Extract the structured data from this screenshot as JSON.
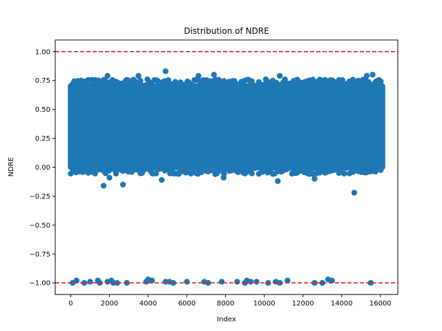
{
  "chart_data": {
    "type": "scatter",
    "title": "Distribution of NDRE",
    "xlabel": "Index",
    "ylabel": "NDRE",
    "xlim": [
      -800,
      16900
    ],
    "ylim": [
      -1.1,
      1.1
    ],
    "x_ticks": [
      0,
      2000,
      4000,
      6000,
      8000,
      10000,
      12000,
      14000,
      16000
    ],
    "x_tick_labels": [
      "0",
      "2000",
      "4000",
      "6000",
      "8000",
      "10000",
      "12000",
      "14000",
      "16000"
    ],
    "y_ticks": [
      -1.0,
      -0.75,
      -0.5,
      -0.25,
      0.0,
      0.25,
      0.5,
      0.75,
      1.0
    ],
    "y_tick_labels": [
      "−1.00",
      "−0.75",
      "−0.50",
      "−0.25",
      "0.00",
      "0.25",
      "0.50",
      "0.75",
      "1.00"
    ],
    "grid": false,
    "reference_lines": [
      {
        "y": 1.0,
        "style": "dashed",
        "color": "#d62728"
      },
      {
        "y": -1.0,
        "style": "dashed",
        "color": "#d62728"
      }
    ],
    "series": [
      {
        "color": "#1f77b4",
        "main_cluster": {
          "x_range": [
            0,
            16100
          ],
          "y_range": [
            0.0,
            0.7
          ],
          "count": 16100
        },
        "points": [
          {
            "x": 1700,
            "y": -0.16
          },
          {
            "x": 2700,
            "y": -0.15
          },
          {
            "x": 14650,
            "y": -0.22
          },
          {
            "x": 4900,
            "y": 0.83
          },
          {
            "x": 1900,
            "y": 0.79
          },
          {
            "x": 3500,
            "y": 0.79
          },
          {
            "x": 6600,
            "y": 0.79
          },
          {
            "x": 7400,
            "y": 0.8
          },
          {
            "x": 10800,
            "y": 0.79
          },
          {
            "x": 15600,
            "y": 0.8
          },
          {
            "x": 15300,
            "y": 0.79
          },
          {
            "x": 4700,
            "y": -0.11
          },
          {
            "x": 10700,
            "y": -0.12
          },
          {
            "x": 12600,
            "y": -0.1
          },
          {
            "x": 2000,
            "y": -0.09
          },
          {
            "x": 7900,
            "y": -0.09
          },
          {
            "x": 100,
            "y": -1.0
          },
          {
            "x": 300,
            "y": -0.98
          },
          {
            "x": 700,
            "y": -1.0
          },
          {
            "x": 1000,
            "y": -0.99
          },
          {
            "x": 1400,
            "y": -0.98
          },
          {
            "x": 1500,
            "y": -1.0
          },
          {
            "x": 1900,
            "y": -0.99
          },
          {
            "x": 2100,
            "y": -0.98
          },
          {
            "x": 2200,
            "y": -1.0
          },
          {
            "x": 2400,
            "y": -1.0
          },
          {
            "x": 2900,
            "y": -1.0
          },
          {
            "x": 3900,
            "y": -0.99
          },
          {
            "x": 4000,
            "y": -0.97
          },
          {
            "x": 4200,
            "y": -0.98
          },
          {
            "x": 4900,
            "y": -0.99
          },
          {
            "x": 5100,
            "y": -0.99
          },
          {
            "x": 5300,
            "y": -1.0
          },
          {
            "x": 6000,
            "y": -0.99
          },
          {
            "x": 6900,
            "y": -0.99
          },
          {
            "x": 7100,
            "y": -1.0
          },
          {
            "x": 7800,
            "y": -0.99
          },
          {
            "x": 8600,
            "y": -0.99
          },
          {
            "x": 9000,
            "y": -1.0
          },
          {
            "x": 9100,
            "y": -0.98
          },
          {
            "x": 9300,
            "y": -0.99
          },
          {
            "x": 9600,
            "y": -0.99
          },
          {
            "x": 10200,
            "y": -1.0
          },
          {
            "x": 10600,
            "y": -0.99
          },
          {
            "x": 10800,
            "y": -1.0
          },
          {
            "x": 11200,
            "y": -0.98
          },
          {
            "x": 12600,
            "y": -1.0
          },
          {
            "x": 13000,
            "y": -1.0
          },
          {
            "x": 13300,
            "y": -0.97
          },
          {
            "x": 13500,
            "y": -0.98
          },
          {
            "x": 15500,
            "y": -1.0
          }
        ]
      }
    ]
  }
}
